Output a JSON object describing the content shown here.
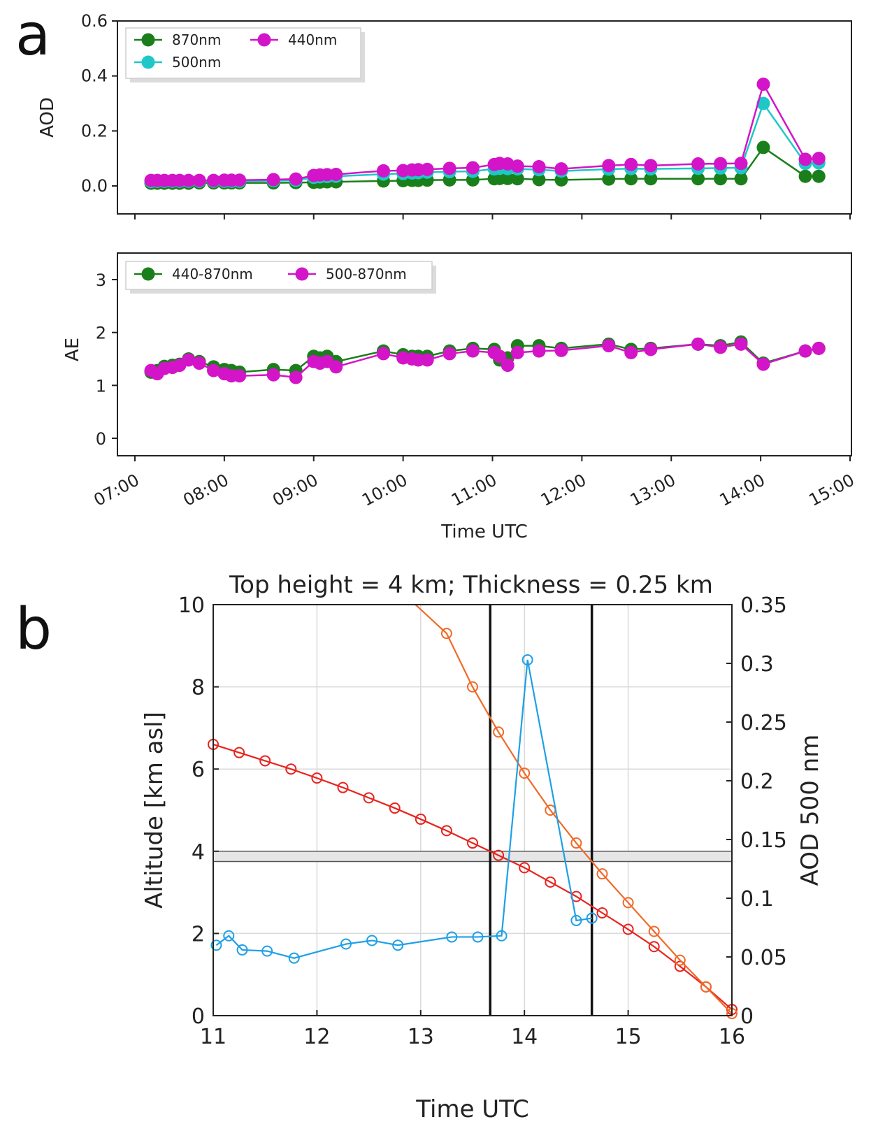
{
  "panel_a_label": "a",
  "panel_b_label": "b",
  "chart_data": [
    {
      "id": "aod",
      "type": "line",
      "ylabel": "AOD",
      "xlabel": "",
      "xlim": [
        7.0,
        15.0
      ],
      "ylim": [
        -0.1,
        0.6
      ],
      "yticks": [
        0.0,
        0.2,
        0.4,
        0.6
      ],
      "ytick_labels": [
        "0.0",
        "0.2",
        "0.4",
        "0.6"
      ],
      "legend": [
        "870nm",
        "500nm",
        "440nm"
      ],
      "legend_position": "top-left",
      "x": [
        7.18,
        7.25,
        7.33,
        7.42,
        7.5,
        7.6,
        7.72,
        7.88,
        8.0,
        8.08,
        8.17,
        8.55,
        8.8,
        9.0,
        9.07,
        9.15,
        9.25,
        9.78,
        10.0,
        10.1,
        10.17,
        10.27,
        10.52,
        10.78,
        11.02,
        11.08,
        11.17,
        11.28,
        11.52,
        11.77,
        12.3,
        12.55,
        12.77,
        13.3,
        13.55,
        13.78,
        14.03,
        14.5,
        14.65
      ],
      "series": [
        {
          "name": "870nm",
          "color": "#1a7f1a",
          "values": [
            0.01,
            0.01,
            0.01,
            0.01,
            0.01,
            0.01,
            0.011,
            0.011,
            0.011,
            0.011,
            0.011,
            0.011,
            0.012,
            0.013,
            0.014,
            0.015,
            0.015,
            0.018,
            0.019,
            0.02,
            0.02,
            0.021,
            0.022,
            0.022,
            0.026,
            0.027,
            0.027,
            0.026,
            0.023,
            0.022,
            0.025,
            0.026,
            0.026,
            0.026,
            0.026,
            0.026,
            0.14,
            0.035,
            0.035
          ]
        },
        {
          "name": "500nm",
          "color": "#1ec8c8",
          "values": [
            0.016,
            0.017,
            0.017,
            0.017,
            0.017,
            0.017,
            0.017,
            0.017,
            0.017,
            0.017,
            0.017,
            0.019,
            0.02,
            0.031,
            0.033,
            0.034,
            0.035,
            0.043,
            0.045,
            0.047,
            0.048,
            0.05,
            0.052,
            0.053,
            0.062,
            0.064,
            0.063,
            0.062,
            0.059,
            0.054,
            0.061,
            0.063,
            0.062,
            0.064,
            0.065,
            0.066,
            0.3,
            0.082,
            0.084
          ]
        },
        {
          "name": "440nm",
          "color": "#d414c8",
          "values": [
            0.02,
            0.02,
            0.02,
            0.02,
            0.02,
            0.02,
            0.02,
            0.02,
            0.021,
            0.021,
            0.021,
            0.023,
            0.025,
            0.038,
            0.04,
            0.041,
            0.042,
            0.055,
            0.056,
            0.058,
            0.059,
            0.06,
            0.064,
            0.066,
            0.078,
            0.082,
            0.08,
            0.072,
            0.07,
            0.062,
            0.074,
            0.078,
            0.074,
            0.08,
            0.081,
            0.082,
            0.37,
            0.097,
            0.1
          ]
        }
      ]
    },
    {
      "id": "ae",
      "type": "line",
      "ylabel": "AE",
      "xlabel": "Time UTC",
      "xlim": [
        7.0,
        15.0
      ],
      "ylim": [
        -0.2,
        3.5
      ],
      "yticks": [
        0,
        1,
        2,
        3
      ],
      "ytick_labels": [
        "0",
        "1",
        "2",
        "3"
      ],
      "xticks": [
        7,
        8,
        9,
        10,
        11,
        12,
        13,
        14,
        15
      ],
      "xtick_labels": [
        "07:00",
        "08:00",
        "09:00",
        "10:00",
        "11:00",
        "12:00",
        "13:00",
        "14:00",
        "15:00"
      ],
      "legend": [
        "440-870nm",
        "500-870nm"
      ],
      "legend_position": "top-left",
      "x": [
        7.18,
        7.25,
        7.33,
        7.42,
        7.5,
        7.6,
        7.72,
        7.88,
        8.0,
        8.08,
        8.17,
        8.55,
        8.8,
        9.0,
        9.07,
        9.15,
        9.25,
        9.78,
        10.0,
        10.1,
        10.17,
        10.27,
        10.52,
        10.78,
        11.02,
        11.08,
        11.17,
        11.28,
        11.52,
        11.77,
        12.3,
        12.55,
        12.77,
        13.3,
        13.55,
        13.78,
        14.03,
        14.5,
        14.65
      ],
      "series": [
        {
          "name": "440-870nm",
          "color": "#1a7f1a",
          "values": [
            1.25,
            1.28,
            1.36,
            1.38,
            1.4,
            1.5,
            1.45,
            1.35,
            1.3,
            1.28,
            1.25,
            1.3,
            1.28,
            1.55,
            1.52,
            1.55,
            1.45,
            1.65,
            1.58,
            1.55,
            1.55,
            1.55,
            1.65,
            1.7,
            1.68,
            1.48,
            1.52,
            1.75,
            1.75,
            1.7,
            1.78,
            1.68,
            1.7,
            1.78,
            1.75,
            1.82,
            1.42,
            1.65,
            1.7
          ]
        },
        {
          "name": "500-870nm",
          "color": "#d414c8",
          "values": [
            1.28,
            1.22,
            1.32,
            1.34,
            1.38,
            1.48,
            1.42,
            1.28,
            1.22,
            1.18,
            1.18,
            1.2,
            1.15,
            1.45,
            1.42,
            1.45,
            1.35,
            1.6,
            1.52,
            1.5,
            1.48,
            1.48,
            1.6,
            1.65,
            1.62,
            1.55,
            1.38,
            1.62,
            1.65,
            1.66,
            1.75,
            1.62,
            1.68,
            1.78,
            1.72,
            1.78,
            1.4,
            1.65,
            1.7
          ]
        }
      ]
    },
    {
      "id": "altitude",
      "type": "line",
      "title": "Top height = 4 km; Thickness = 0.25 km",
      "xlabel": "Time UTC",
      "ylabel": "Altitude [km asl]",
      "y2label": "AOD 500 nm",
      "xlim": [
        11,
        16
      ],
      "ylim": [
        0,
        10
      ],
      "y2lim": [
        0,
        0.35
      ],
      "xticks": [
        11,
        12,
        13,
        14,
        15,
        16
      ],
      "xtick_labels": [
        "11",
        "12",
        "13",
        "14",
        "15",
        "16"
      ],
      "yticks": [
        0,
        2,
        4,
        6,
        8,
        10
      ],
      "ytick_labels": [
        "0",
        "2",
        "4",
        "6",
        "8",
        "10"
      ],
      "y2ticks": [
        0,
        0.05,
        0.1,
        0.15,
        0.2,
        0.25,
        0.3,
        0.35
      ],
      "y2tick_labels": [
        "0",
        "0.05",
        "0.1",
        "0.15",
        "0.2",
        "0.25",
        "0.3",
        "0.35"
      ],
      "layer_band": [
        3.75,
        4.0
      ],
      "vertical_lines": [
        13.67,
        14.65
      ],
      "series": [
        {
          "name": "curve-red",
          "axis": "left",
          "color": "#e8231e",
          "x": [
            11.0,
            11.25,
            11.5,
            11.75,
            12.0,
            12.25,
            12.5,
            12.75,
            13.0,
            13.25,
            13.5,
            13.75,
            14.0,
            14.25,
            14.5,
            14.75,
            15.0,
            15.25,
            15.5,
            15.75,
            16.0
          ],
          "values": [
            6.6,
            6.4,
            6.2,
            6.0,
            5.78,
            5.55,
            5.3,
            5.05,
            4.78,
            4.5,
            4.2,
            3.9,
            3.6,
            3.25,
            2.9,
            2.5,
            2.1,
            1.68,
            1.2,
            0.7,
            0.15
          ]
        },
        {
          "name": "curve-orange",
          "axis": "left",
          "color": "#f06a28",
          "x": [
            13.25,
            13.5,
            13.75,
            14.0,
            14.25,
            14.5,
            14.75,
            15.0,
            15.25,
            15.5,
            15.75,
            16.0
          ],
          "values": [
            9.3,
            8.0,
            6.9,
            5.9,
            5.0,
            4.2,
            3.45,
            2.75,
            2.05,
            1.35,
            0.7,
            0.05
          ],
          "line_extends_to": [
            12.95,
            10.0
          ]
        },
        {
          "name": "aod-500",
          "axis": "right",
          "color": "#1ea0e6",
          "x": [
            11.03,
            11.15,
            11.28,
            11.52,
            11.78,
            12.28,
            12.53,
            12.78,
            13.3,
            13.55,
            13.78,
            14.03,
            14.5,
            14.65
          ],
          "values": [
            0.06,
            0.068,
            0.056,
            0.055,
            0.049,
            0.061,
            0.064,
            0.06,
            0.067,
            0.067,
            0.068,
            0.303,
            0.081,
            0.083
          ]
        }
      ]
    }
  ]
}
